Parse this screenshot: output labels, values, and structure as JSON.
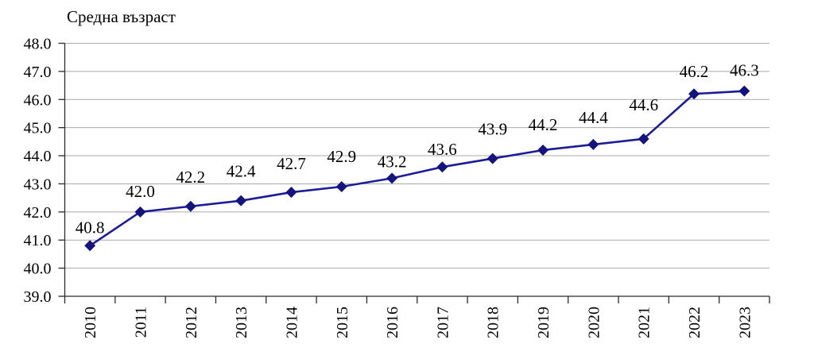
{
  "page": {
    "background_color": "#ffffff"
  },
  "chart_data": {
    "type": "line",
    "title": "Средна възраст",
    "categories": [
      "2010",
      "2011",
      "2012",
      "2013",
      "2014",
      "2015",
      "2016",
      "2017",
      "2018",
      "2019",
      "2020",
      "2021",
      "2022",
      "2023"
    ],
    "series": [
      {
        "name": "Средна възраст",
        "values": [
          40.8,
          42.0,
          42.2,
          42.4,
          42.7,
          42.9,
          43.2,
          43.6,
          43.9,
          44.2,
          44.4,
          44.6,
          46.2,
          46.3
        ]
      }
    ],
    "data_labels": [
      "40.8",
      "42.0",
      "42.2",
      "42.4",
      "42.7",
      "42.9",
      "43.2",
      "43.6",
      "43.9",
      "44.2",
      "44.4",
      "44.6",
      "46.2",
      "46.3"
    ],
    "xlabel": "",
    "ylabel": "",
    "ylim": [
      39.0,
      48.0
    ],
    "ytick_step": 1.0,
    "ytick_labels": [
      "39.0",
      "40.0",
      "41.0",
      "42.0",
      "43.0",
      "44.0",
      "45.0",
      "46.0",
      "47.0",
      "48.0"
    ],
    "grid": true,
    "legend": "none",
    "x_label_rotation_deg": -90,
    "marker_shape": "diamond",
    "colors": {
      "line": "#1c1c96",
      "marker": "#14147c",
      "grid": "#a9a9a9",
      "axis": "#2b2b2b",
      "text": "#000000"
    },
    "label_dy": [
      -16,
      -19,
      -30,
      -30,
      -29,
      -31,
      -14,
      -15,
      -30,
      -25,
      -27,
      -36,
      -21,
      -19
    ]
  }
}
